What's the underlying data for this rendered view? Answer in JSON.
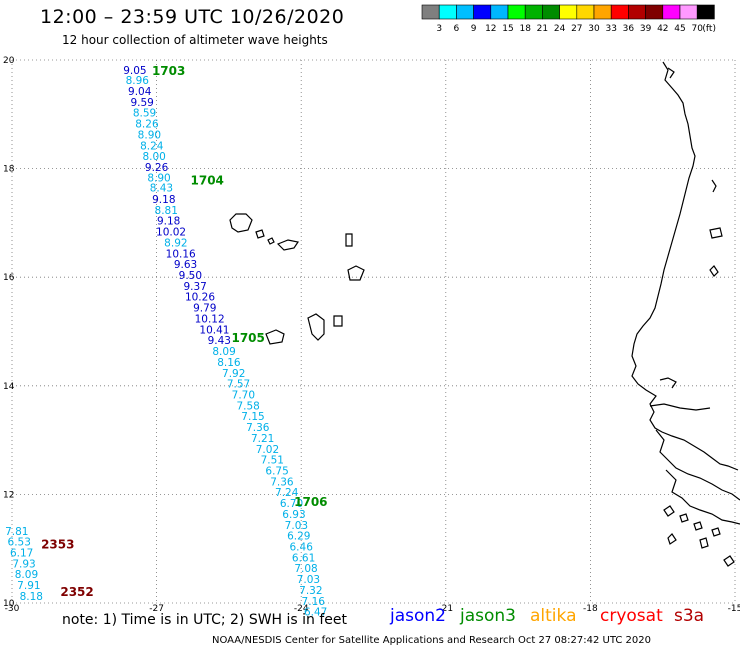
{
  "title": "12:00 – 23:59 UTC 10/26/2020",
  "subtitle": "12 hour collection of altimeter wave heights",
  "colorbar": {
    "unit": "(ft)",
    "labels": [
      "3",
      "6",
      "9",
      "12",
      "15",
      "18",
      "21",
      "24",
      "27",
      "30",
      "33",
      "36",
      "39",
      "42",
      "45",
      "70"
    ],
    "colors": [
      "#7f7f7f",
      "#00ffff",
      "#00bfff",
      "#0000ff",
      "#00b7ff",
      "#00ff00",
      "#00b200",
      "#008c00",
      "#ffff00",
      "#ffd700",
      "#ffa500",
      "#ff0000",
      "#b20000",
      "#7f0000",
      "#ff00ff",
      "#ff99ff",
      "#000000"
    ]
  },
  "axes": {
    "lon_ticks": [
      "-30",
      "-27",
      "-24",
      "-21",
      "-18",
      "-15"
    ],
    "lat_ticks": [
      "20",
      "18",
      "16",
      "14",
      "12",
      "10"
    ],
    "lon_range": [
      -30,
      -15
    ],
    "lat_range": [
      10,
      20
    ]
  },
  "wave_color_scale": {
    "light_cyan": "#00b0e8",
    "dark_blue": "#0000c8",
    "green": "#008c00",
    "dark_red": "#7f0000"
  },
  "passes": [
    {
      "label": "1703",
      "lon": -26.75,
      "lat": 19.82
    },
    {
      "label": "1704",
      "lon": -25.95,
      "lat": 17.8
    },
    {
      "label": "1705",
      "lon": -25.1,
      "lat": 14.9
    },
    {
      "label": "1706",
      "lon": -23.8,
      "lat": 11.88
    },
    {
      "label": "2353",
      "lon": -29.05,
      "lat": 11.1
    },
    {
      "label": "2352",
      "lon": -28.65,
      "lat": 10.22
    }
  ],
  "track1": [
    {
      "v": "9.05",
      "lon": -27.45,
      "lat": 19.82,
      "c": "dark_blue"
    },
    {
      "v": "8.96",
      "lon": -27.4,
      "lat": 19.63,
      "c": "light_cyan"
    },
    {
      "v": "9.04",
      "lon": -27.35,
      "lat": 19.43,
      "c": "dark_blue"
    },
    {
      "v": "9.59",
      "lon": -27.3,
      "lat": 19.23,
      "c": "dark_blue"
    },
    {
      "v": "8.59",
      "lon": -27.25,
      "lat": 19.03,
      "c": "light_cyan"
    },
    {
      "v": "8.26",
      "lon": -27.2,
      "lat": 18.83,
      "c": "light_cyan"
    },
    {
      "v": "8.90",
      "lon": -27.15,
      "lat": 18.63,
      "c": "light_cyan"
    },
    {
      "v": "8.24",
      "lon": -27.1,
      "lat": 18.43,
      "c": "light_cyan"
    },
    {
      "v": "8.00",
      "lon": -27.05,
      "lat": 18.23,
      "c": "light_cyan"
    },
    {
      "v": "9.26",
      "lon": -27.0,
      "lat": 18.03,
      "c": "dark_blue"
    },
    {
      "v": "8.90",
      "lon": -26.95,
      "lat": 17.84,
      "c": "light_cyan"
    },
    {
      "v": "8.43",
      "lon": -26.9,
      "lat": 17.65,
      "c": "light_cyan"
    },
    {
      "v": "9.18",
      "lon": -26.85,
      "lat": 17.44,
      "c": "dark_blue"
    },
    {
      "v": "8.81",
      "lon": -26.8,
      "lat": 17.24,
      "c": "light_cyan"
    },
    {
      "v": "9.18",
      "lon": -26.75,
      "lat": 17.04,
      "c": "dark_blue"
    },
    {
      "v": "10.02",
      "lon": -26.7,
      "lat": 16.84,
      "c": "dark_blue"
    },
    {
      "v": "8.92",
      "lon": -26.6,
      "lat": 16.64,
      "c": "light_cyan"
    },
    {
      "v": "10.16",
      "lon": -26.5,
      "lat": 16.44,
      "c": "dark_blue"
    },
    {
      "v": "9.63",
      "lon": -26.4,
      "lat": 16.24,
      "c": "dark_blue"
    },
    {
      "v": "9.50",
      "lon": -26.3,
      "lat": 16.04,
      "c": "dark_blue"
    },
    {
      "v": "9.37",
      "lon": -26.2,
      "lat": 15.84,
      "c": "dark_blue"
    },
    {
      "v": "10.26",
      "lon": -26.1,
      "lat": 15.64,
      "c": "dark_blue"
    },
    {
      "v": "9.79",
      "lon": -26.0,
      "lat": 15.44,
      "c": "dark_blue"
    },
    {
      "v": "10.12",
      "lon": -25.9,
      "lat": 15.24,
      "c": "dark_blue"
    },
    {
      "v": "10.41",
      "lon": -25.8,
      "lat": 15.04,
      "c": "dark_blue"
    },
    {
      "v": "9.43",
      "lon": -25.7,
      "lat": 14.84,
      "c": "dark_blue"
    },
    {
      "v": "8.09",
      "lon": -25.6,
      "lat": 14.64,
      "c": "light_cyan"
    },
    {
      "v": "8.16",
      "lon": -25.5,
      "lat": 14.44,
      "c": "light_cyan"
    },
    {
      "v": "7.92",
      "lon": -25.4,
      "lat": 14.24,
      "c": "light_cyan"
    },
    {
      "v": "7.57",
      "lon": -25.3,
      "lat": 14.04,
      "c": "light_cyan"
    },
    {
      "v": "7.70",
      "lon": -25.2,
      "lat": 13.84,
      "c": "light_cyan"
    },
    {
      "v": "7.58",
      "lon": -25.1,
      "lat": 13.64,
      "c": "light_cyan"
    },
    {
      "v": "7.15",
      "lon": -25.0,
      "lat": 13.44,
      "c": "light_cyan"
    },
    {
      "v": "7.36",
      "lon": -24.9,
      "lat": 13.24,
      "c": "light_cyan"
    },
    {
      "v": "7.21",
      "lon": -24.8,
      "lat": 13.04,
      "c": "light_cyan"
    },
    {
      "v": "7.02",
      "lon": -24.7,
      "lat": 12.84,
      "c": "light_cyan"
    },
    {
      "v": "7.51",
      "lon": -24.6,
      "lat": 12.64,
      "c": "light_cyan"
    },
    {
      "v": "6.75",
      "lon": -24.5,
      "lat": 12.44,
      "c": "light_cyan"
    },
    {
      "v": "7.36",
      "lon": -24.4,
      "lat": 12.24,
      "c": "light_cyan"
    },
    {
      "v": "7.24",
      "lon": -24.3,
      "lat": 12.04,
      "c": "light_cyan"
    },
    {
      "v": "6.70",
      "lon": -24.2,
      "lat": 11.84,
      "c": "light_cyan"
    },
    {
      "v": "6.93",
      "lon": -24.15,
      "lat": 11.64,
      "c": "light_cyan"
    },
    {
      "v": "7.03",
      "lon": -24.1,
      "lat": 11.44,
      "c": "light_cyan"
    },
    {
      "v": "6.29",
      "lon": -24.05,
      "lat": 11.24,
      "c": "light_cyan"
    },
    {
      "v": "6.46",
      "lon": -24.0,
      "lat": 11.04,
      "c": "light_cyan"
    },
    {
      "v": "6.61",
      "lon": -23.95,
      "lat": 10.84,
      "c": "light_cyan"
    },
    {
      "v": "7.08",
      "lon": -23.9,
      "lat": 10.64,
      "c": "light_cyan"
    },
    {
      "v": "7.03",
      "lon": -23.85,
      "lat": 10.44,
      "c": "light_cyan"
    },
    {
      "v": "7.32",
      "lon": -23.8,
      "lat": 10.24,
      "c": "light_cyan"
    },
    {
      "v": "7.16",
      "lon": -23.75,
      "lat": 10.04,
      "c": "light_cyan"
    },
    {
      "v": "6.47",
      "lon": -23.7,
      "lat": 9.84,
      "c": "light_cyan"
    }
  ],
  "track2": [
    {
      "v": "7.81",
      "lon": -29.9,
      "lat": 11.33,
      "c": "light_cyan"
    },
    {
      "v": "6.53",
      "lon": -29.85,
      "lat": 11.13,
      "c": "light_cyan"
    },
    {
      "v": "6.17",
      "lon": -29.8,
      "lat": 10.93,
      "c": "light_cyan"
    },
    {
      "v": "7.93",
      "lon": -29.75,
      "lat": 10.73,
      "c": "light_cyan"
    },
    {
      "v": "8.09",
      "lon": -29.7,
      "lat": 10.53,
      "c": "light_cyan"
    },
    {
      "v": "7.91",
      "lon": -29.65,
      "lat": 10.33,
      "c": "light_cyan"
    },
    {
      "v": "8.18",
      "lon": -29.6,
      "lat": 10.13,
      "c": "light_cyan"
    }
  ],
  "note": "note:  1) Time is in UTC;  2) SWH is in feet",
  "satellites": [
    {
      "name": "jason2",
      "color": "#0000ff"
    },
    {
      "name": "jason3",
      "color": "#008c00"
    },
    {
      "name": "altika",
      "color": "#ffa500"
    },
    {
      "name": "cryosat",
      "color": "#ff0000"
    },
    {
      "name": "s3a",
      "color": "#b20000"
    }
  ],
  "credit": "NOAA/NESDIS Center for Satellite Applications and Research    Oct 27 08:27:42 UTC 2020"
}
